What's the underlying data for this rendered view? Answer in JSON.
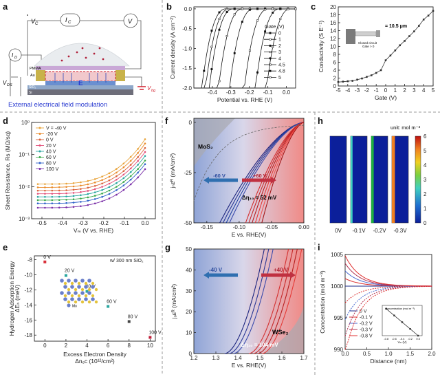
{
  "panel_letters": [
    "a",
    "b",
    "c",
    "d",
    "e",
    "f",
    "g",
    "h",
    "i"
  ],
  "panel_a": {
    "caption": "External electrical field modulation",
    "labels": {
      "vc": "V",
      "vc_sub": "C",
      "ic": "I",
      "ic_sub": "C",
      "v": "V",
      "id": "I",
      "id_sub": "D",
      "vds": "V",
      "vds_sub": "DS",
      "vbg": "V",
      "vbg_sub": "bg",
      "pmma": "PMMA",
      "au": "Au",
      "sio2": "SiO₂",
      "si": "Si",
      "e": "E"
    }
  },
  "panel_b": {
    "legend_title": "Gate (V)"
  },
  "panel_c": {
    "inset_text": "= 10.5 μm",
    "inset_sub": "Closed circuit",
    "inset_sub2": "Gate > 0"
  },
  "panel_d": {
    "legend_prefix": "V"
  },
  "panel_e": {
    "note": "w/ 300 nm SiO₂",
    "atom_label": "Mo"
  },
  "panel_f": {
    "material": "MoS₂",
    "left_arrow": "-60 V",
    "right_arrow": "+60 V",
    "delta": "Δη₁₀ = 52 mV"
  },
  "panel_g": {
    "material": "WSe₂",
    "left_arrow": "-40 V",
    "right_arrow": "+40 V",
    "delta": "Δη₁₀ = 104 mV"
  },
  "panel_h": {
    "unit": "unit: mol m⁻³",
    "columns": [
      "0V",
      "-0.1V",
      "-0.2V",
      "-0.3V"
    ]
  },
  "panel_i": {
    "inset_xlabel": "Vₘ (V)",
    "inset_ylabel": "Concentration (mol m⁻³)"
  },
  "chart_data": [
    {
      "id": "b",
      "type": "line",
      "xlabel": "Potential vs. RHE (V)",
      "ylabel": "Current density (A cm⁻²)",
      "xlim": [
        -0.5,
        0.05
      ],
      "ylim": [
        -2.0,
        0.05
      ],
      "xticks": [
        -0.4,
        -0.3,
        -0.2,
        -0.1,
        0.0
      ],
      "xticklabels": [
        "-0.4",
        "-0.3",
        "-0.2",
        "-0.1",
        "0.0"
      ],
      "yticks": [
        0.0,
        -0.5,
        -1.0,
        -1.5,
        -2.0
      ],
      "yticklabels": [
        "0.0",
        "-0.5",
        "-1.0",
        "-1.5",
        "-2.0"
      ],
      "series": [
        {
          "name": "0",
          "onset": -0.45
        },
        {
          "name": "1",
          "onset": -0.43
        },
        {
          "name": "2",
          "onset": -0.41
        },
        {
          "name": "3",
          "onset": -0.36
        },
        {
          "name": "4",
          "onset": -0.3
        },
        {
          "name": "4.5",
          "onset": -0.22
        },
        {
          "name": "4.8",
          "onset": -0.16
        },
        {
          "name": "5",
          "onset": -0.1
        }
      ],
      "legend": "right"
    },
    {
      "id": "c",
      "type": "line",
      "xlabel": "Gate (V)",
      "ylabel": "Conductivity (S E⁻¹)",
      "xlim": [
        -5,
        5
      ],
      "ylim": [
        0,
        20
      ],
      "xticks": [
        -5,
        -4,
        -3,
        -2,
        -1,
        0,
        1,
        2,
        3,
        4,
        5
      ],
      "xticklabels": [
        "-5",
        "-4",
        "-3",
        "-2",
        "-1",
        "0",
        "1",
        "2",
        "3",
        "4",
        "5"
      ],
      "yticks": [
        0,
        2,
        4,
        6,
        8,
        10,
        12,
        14,
        16,
        18,
        20
      ],
      "yticklabels": [
        "0",
        "2",
        "4",
        "6",
        "8",
        "10",
        "12",
        "14",
        "16",
        "18",
        "20"
      ],
      "x": [
        -5,
        -4.5,
        -4,
        -3.5,
        -3,
        -2.5,
        -2,
        -1.5,
        -1,
        -0.5,
        0,
        0.5,
        1,
        1.5,
        2,
        2.5,
        3,
        3.5,
        4,
        4.5,
        5
      ],
      "y": [
        1.0,
        1.1,
        1.2,
        1.3,
        1.6,
        1.9,
        2.3,
        2.7,
        3.3,
        4.0,
        6.5,
        7.7,
        9.0,
        10.3,
        11.4,
        12.6,
        13.8,
        15.2,
        16.8,
        17.8,
        19.0
      ]
    },
    {
      "id": "d",
      "type": "line",
      "xlabel": "Vₘ (V vs. RHE)",
      "ylabel": "Sheet Resistance, Rs (MΩ/sq)",
      "xlim": [
        -0.55,
        0.05
      ],
      "log_y": true,
      "ylim": [
        0.001,
        1
      ],
      "xticks": [
        -0.5,
        -0.4,
        -0.3,
        -0.2,
        -0.1,
        0.0
      ],
      "xticklabels": [
        "-0.5",
        "-0.4",
        "-0.3",
        "-0.2",
        "-0.1",
        "0.0"
      ],
      "yticklabels": [
        "10⁻³",
        "10⁻²",
        "10⁻¹",
        "10⁰"
      ],
      "series": [
        {
          "name": "-40 V",
          "start": 0.012,
          "end": 0.3,
          "color": "#e8a33a"
        },
        {
          "name": "-20 V",
          "start": 0.0095,
          "end": 0.22,
          "color": "#e98b2a"
        },
        {
          "name": "0 V",
          "start": 0.0075,
          "end": 0.16,
          "color": "#d9623b"
        },
        {
          "name": "20 V",
          "start": 0.006,
          "end": 0.12,
          "color": "#e3507a"
        },
        {
          "name": "40 V",
          "start": 0.0048,
          "end": 0.09,
          "color": "#2aa6a0"
        },
        {
          "name": "60 V",
          "start": 0.0038,
          "end": 0.065,
          "color": "#3aa84a"
        },
        {
          "name": "80 V",
          "start": 0.003,
          "end": 0.05,
          "color": "#2f62c9"
        },
        {
          "name": "100 V",
          "start": 0.0022,
          "end": 0.035,
          "color": "#7a2fa8"
        }
      ],
      "legend": "top-left"
    },
    {
      "id": "e",
      "type": "scatter",
      "xlabel": "Excess Electron Density",
      "xlabel2": "Δnₑᴄ (10¹²/cm²)",
      "ylabel": "Hydrogen Adsorption Energy",
      "ylabel2": "ΔEₕ (meV)",
      "xlim": [
        -1,
        10.5
      ],
      "ylim": [
        -18.8,
        -7.5
      ],
      "xticks": [
        0,
        2,
        4,
        6,
        8,
        10
      ],
      "xticklabels": [
        "0",
        "2",
        "4",
        "6",
        "8",
        "10"
      ],
      "yticks": [
        -8,
        -10,
        -12,
        -14,
        -16,
        -18
      ],
      "yticklabels": [
        "-8",
        "-10",
        "-12",
        "-14",
        "-16",
        "-18"
      ],
      "points": [
        {
          "label": "0 V",
          "x": 0,
          "y": -8.3,
          "color": "#d9303a"
        },
        {
          "label": "20 V",
          "x": 2.0,
          "y": -10.1,
          "color": "#2aa6a0"
        },
        {
          "label": "40 V",
          "x": 4.0,
          "y": -12.2,
          "color": "#2aa6a0"
        },
        {
          "label": "60 V",
          "x": 6.0,
          "y": -14.2,
          "color": "#2aa6a0"
        },
        {
          "label": "80 V",
          "x": 8.0,
          "y": -16.2,
          "color": "#444444"
        },
        {
          "label": "100 V",
          "x": 10.0,
          "y": -18.3,
          "color": "#c0203a"
        }
      ]
    },
    {
      "id": "f",
      "type": "line",
      "xlabel": "E vs. RHE(V)",
      "ylabel": "jₕᴇᴿ (mA/cm²)",
      "xlim": [
        -0.17,
        0.0
      ],
      "ylim": [
        -50,
        2
      ],
      "xticks": [
        -0.15,
        -0.1,
        -0.05,
        0.0
      ],
      "xticklabels": [
        "-0.15",
        "-0.10",
        "-0.05",
        "0.00"
      ],
      "yticks": [
        0,
        -25,
        -50
      ],
      "yticklabels": [
        "0",
        "-25",
        "-50"
      ],
      "series_blue_onsets": [
        -0.13,
        -0.125,
        -0.12,
        -0.115
      ],
      "series_red_onsets": [
        -0.09,
        -0.085,
        -0.08,
        -0.075,
        -0.07,
        -0.065
      ]
    },
    {
      "id": "g",
      "type": "line",
      "xlabel": "E vs. RHE(V)",
      "ylabel": "jₒᴇᴿ (mA/cm²)",
      "xlim": [
        1.2,
        1.7
      ],
      "ylim": [
        0,
        50
      ],
      "xticks": [
        1.2,
        1.3,
        1.4,
        1.5,
        1.6,
        1.7
      ],
      "xticklabels": [
        "1.2",
        "1.3",
        "1.4",
        "1.5",
        "1.6",
        "1.7"
      ],
      "yticks": [
        0,
        10,
        20,
        30,
        40,
        50
      ],
      "yticklabels": [
        "0",
        "10",
        "20",
        "30",
        "40",
        "50"
      ],
      "series_blue_onsets": [
        1.34,
        1.36,
        1.38
      ],
      "series_red_onsets": [
        1.45,
        1.47,
        1.49,
        1.51
      ]
    },
    {
      "id": "h",
      "type": "heatmap",
      "colorbar_ticks": [
        "6",
        "5",
        "4",
        "3",
        "2",
        "1",
        "0"
      ],
      "colorbar_range": [
        0,
        6
      ]
    },
    {
      "id": "i",
      "type": "line",
      "xlabel": "Distance (nm)",
      "ylabel": "Concentration (mol m⁻³)",
      "xlim": [
        0,
        2.0
      ],
      "ylim": [
        990,
        1005
      ],
      "xticks": [
        0.0,
        0.5,
        1.0,
        1.5,
        2.0
      ],
      "xticklabels": [
        "0.0",
        "0.5",
        "1.0",
        "1.5",
        "2.0"
      ],
      "yticks": [
        990,
        995,
        1000,
        1005
      ],
      "yticklabels": [
        "990",
        "995",
        "1000",
        "1005"
      ],
      "series": [
        {
          "name": "0 V",
          "color": "#1a2a8a",
          "delta": 0
        },
        {
          "name": "-0.1 V",
          "color": "#d92a2a",
          "delta": 1.2
        },
        {
          "name": "-0.2 V",
          "color": "#4a6ad0",
          "delta": 2.4
        },
        {
          "name": "-0.3 V",
          "color": "#b03050",
          "delta": 3.6
        },
        {
          "name": "-0.8 V",
          "color": "#e03030",
          "delta": 4.8
        }
      ],
      "inset": {
        "x": [
          -0.8,
          -0.6,
          -0.4,
          -0.2,
          0.0
        ],
        "y": [
          16,
          12,
          8,
          4,
          0
        ],
        "xticklabels": [
          "-0.8",
          "-0.6",
          "-0.4",
          "-0.2",
          "0.0"
        ]
      }
    }
  ]
}
